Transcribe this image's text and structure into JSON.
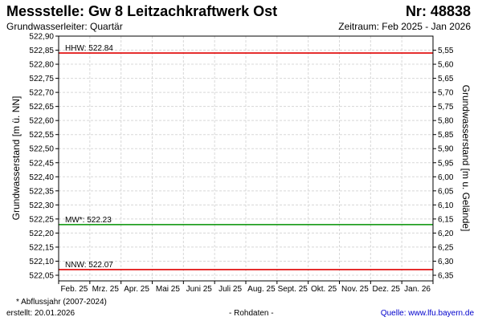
{
  "header": {
    "title": "Messstelle: Gw 8 Leitzachkraftwerk Ost",
    "number": "Nr: 48838",
    "aquifer": "Grundwasserleiter: Quartär",
    "period": "Zeitraum: Feb 2025 - Jan 2026"
  },
  "footer": {
    "note": "* Abflussjahr (2007-2024)",
    "created": "erstellt:  20.01.2026",
    "raw": "- Rohdaten -",
    "source": "Quelle: www.lfu.bayern.de"
  },
  "chart_data": {
    "type": "line",
    "title": "",
    "xlabel": "",
    "ylabel": "Grundwasserstand [m ü. NN]",
    "ylabel_right": "Grundwasserstand [m u. Gelände]",
    "ylim": [
      522.03,
      522.9
    ],
    "ylim_right": [
      6.37,
      5.5
    ],
    "grid": true,
    "y_ticks": [
      "522,90",
      "522,85",
      "522,80",
      "522,75",
      "522,70",
      "522,65",
      "522,60",
      "522,55",
      "522,50",
      "522,45",
      "522,40",
      "522,35",
      "522,30",
      "522,25",
      "522,20",
      "522,15",
      "522,10",
      "522,05"
    ],
    "y_ticks_right": [
      "5,55",
      "5,60",
      "5,65",
      "5,70",
      "5,75",
      "5,80",
      "5,85",
      "5,90",
      "5,95",
      "6,00",
      "6,05",
      "6,10",
      "6,15",
      "6,20",
      "6,25",
      "6,30",
      "6,35"
    ],
    "x_ticks": [
      "Feb. 25",
      "Mrz. 25",
      "Apr. 25",
      "Mai 25",
      "Juni 25",
      "Juli 25",
      "Aug. 25",
      "Sept. 25",
      "Okt. 25",
      "Nov. 25",
      "Dez. 25",
      "Jan. 26"
    ],
    "reference_lines": [
      {
        "label": "HHW: 522.84",
        "value": 522.84,
        "color": "#e00000"
      },
      {
        "label": "MW*: 522.23",
        "value": 522.23,
        "color": "#009000"
      },
      {
        "label": "NNW: 522.07",
        "value": 522.07,
        "color": "#e00000"
      }
    ],
    "series": []
  }
}
